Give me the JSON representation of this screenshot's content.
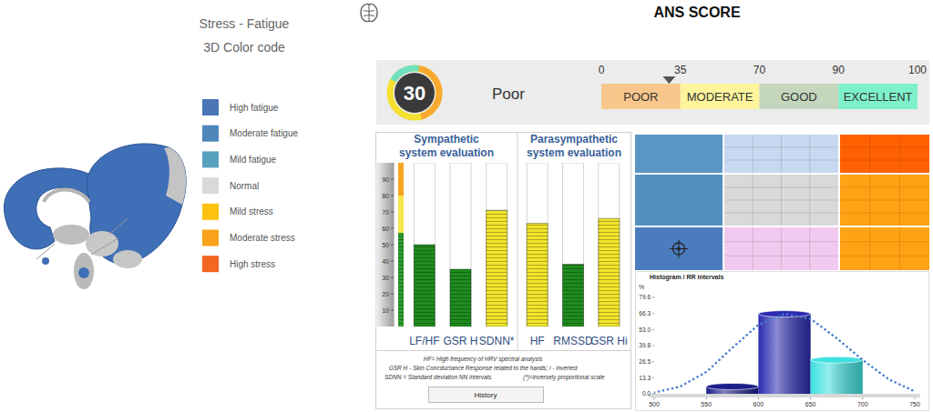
{
  "header": {
    "title": "ANS SCORE",
    "legend_title": "Stress - Fatigue",
    "legend_subtitle": "3D Color code"
  },
  "color_legend": [
    {
      "label": "High fatigue",
      "color": "#4a76b8"
    },
    {
      "label": "Moderate fatigue",
      "color": "#4f87ba"
    },
    {
      "label": "Mild fatigue",
      "color": "#5aa1c0"
    },
    {
      "label": "Normal",
      "color": "#d9d9d9"
    },
    {
      "label": "Mild stress",
      "color": "#fcc20f"
    },
    {
      "label": "Moderate stress",
      "color": "#f9a21c"
    },
    {
      "label": "High stress",
      "color": "#f26522"
    }
  ],
  "score": {
    "value": 30,
    "rating": "Poor",
    "scale": [
      {
        "label": "POOR",
        "from": 0,
        "to": 35,
        "color": "#f9c78c"
      },
      {
        "label": "MODERATE",
        "from": 35,
        "to": 70,
        "color": "#fdf49c"
      },
      {
        "label": "GOOD",
        "from": 70,
        "to": 90,
        "color": "#c4d6bc"
      },
      {
        "label": "EXCELLENT",
        "from": 90,
        "to": 100,
        "color": "#7df1c9"
      }
    ],
    "ticks": [
      0,
      35,
      70,
      90,
      100
    ]
  },
  "chart_data": [
    {
      "type": "bar",
      "title": "Sympathetic system evaluation",
      "categories": [
        "LF/HF",
        "GSR H",
        "SDNN*"
      ],
      "values": [
        50,
        35,
        71
      ],
      "colors": [
        "#1e8c1e",
        "#1e8c1e",
        "#f2e52c"
      ],
      "ylim": [
        0,
        100
      ],
      "yticks": [
        10,
        20,
        30,
        40,
        50,
        60,
        70,
        80,
        90
      ]
    },
    {
      "type": "bar",
      "title": "Parasympathetic system evaluation",
      "categories": [
        "HF",
        "RMSSD",
        "GSR Hi"
      ],
      "values": [
        63,
        38,
        66
      ],
      "colors": [
        "#f2e52c",
        "#1e8c1e",
        "#f2e52c"
      ],
      "ylim": [
        0,
        100
      ],
      "tick_labels": false
    },
    {
      "type": "histogram",
      "title": "Histogram / RR intervals",
      "ylabel": "%",
      "bins": [
        550,
        600,
        650,
        700
      ],
      "series": [
        {
          "type": "bar",
          "values": [
            6,
            66,
            28
          ],
          "colors": [
            "#1c1c8a",
            "#2b2bb0",
            "#3fe0e0"
          ]
        },
        {
          "type": "line",
          "line_style": "dotted",
          "color": "#4a7fd0",
          "x": [
            500,
            525,
            550,
            575,
            600,
            625,
            650,
            675,
            700,
            725,
            750
          ],
          "values": [
            1,
            6,
            18,
            38,
            57,
            66,
            62,
            46,
            28,
            12,
            2
          ]
        }
      ],
      "xlim": [
        500,
        750
      ],
      "xticks": [
        500,
        550,
        600,
        650,
        700,
        750
      ],
      "ylim": [
        0,
        79.6
      ],
      "yticks": [
        {
          "value": 0,
          "label": "0.0"
        },
        13.3,
        26.5,
        39.8,
        {
          "value": 53,
          "label": "53.0"
        },
        66.3,
        79.6
      ]
    }
  ],
  "footnotes": [
    "HF= High frequency of HRV spectral analysis",
    "GSR H - Skin Concductance Response related to the hands; i - inverted",
    "SDNN = Standard deviation NN intervals",
    "(*)=inversely proportional scale"
  ],
  "button": "History",
  "stress_map": {
    "cells": [
      [
        "#5a96c3",
        "#c6d9f0",
        "#ff6100"
      ],
      [
        "#5290c0",
        "#d9d9d9",
        "#ffa214"
      ],
      [
        "#4b7cbd",
        "#f2c9ef",
        "#ffa214"
      ]
    ],
    "marker": [
      2,
      0
    ]
  }
}
